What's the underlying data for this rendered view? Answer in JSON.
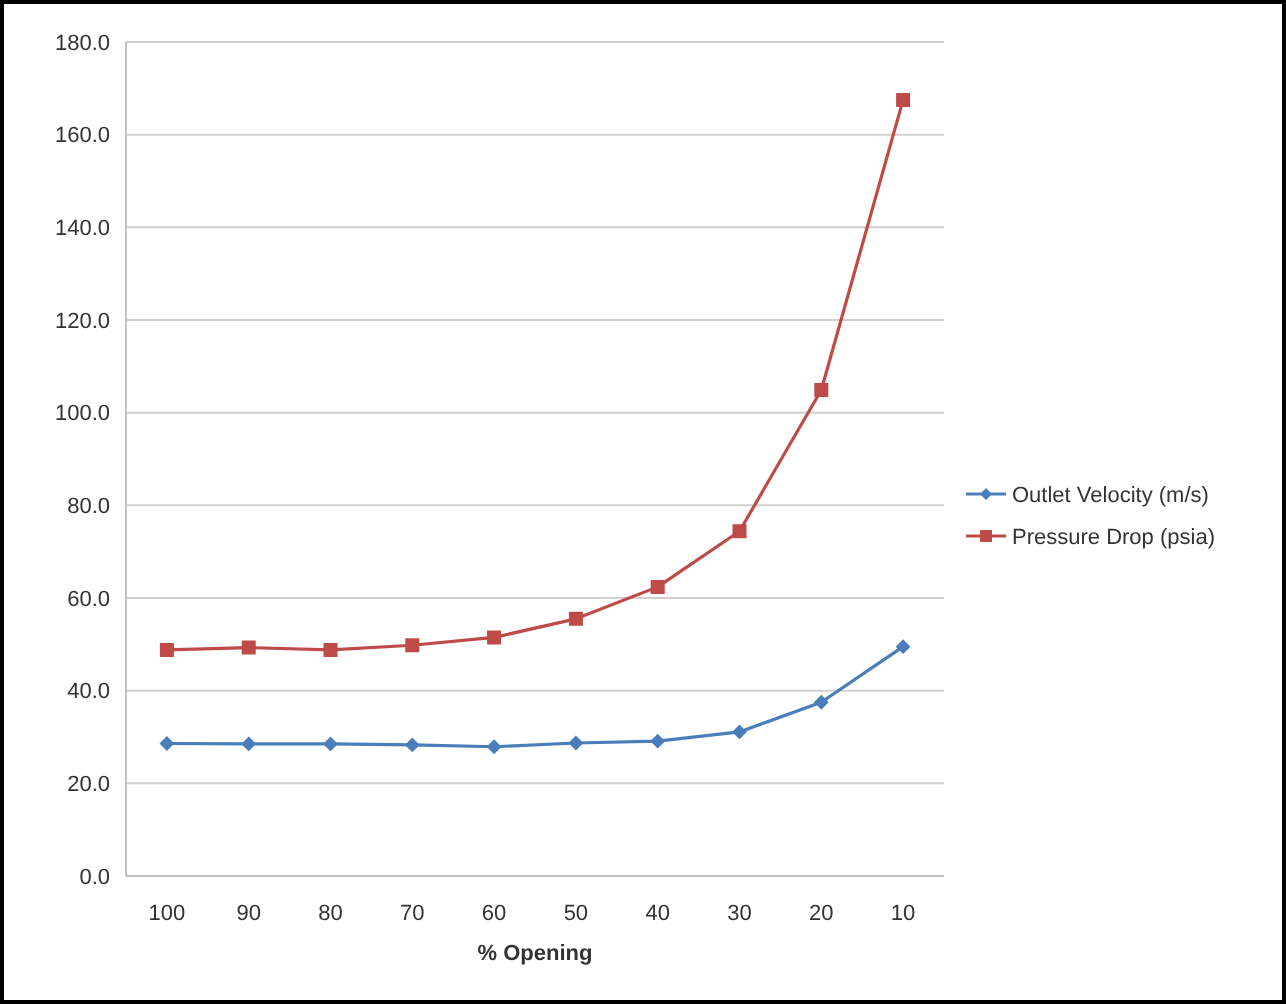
{
  "chart_data": {
    "type": "line",
    "xlabel": "% Opening",
    "categories": [
      "100",
      "90",
      "80",
      "70",
      "60",
      "50",
      "40",
      "30",
      "20",
      "10"
    ],
    "series": [
      {
        "name": "Outlet Velocity (m/s)",
        "color": "#4a7ebb",
        "marker": "diamond",
        "values": [
          28.6,
          28.5,
          28.5,
          28.3,
          27.9,
          28.7,
          29.1,
          31.1,
          37.5,
          49.5
        ]
      },
      {
        "name": "Pressure Drop (psia)",
        "color": "#be4b48",
        "marker": "square",
        "values": [
          48.8,
          49.3,
          48.8,
          49.8,
          51.5,
          55.5,
          62.4,
          74.4,
          104.9,
          167.5
        ]
      }
    ],
    "ylim": [
      0,
      180
    ],
    "yticks": [
      {
        "value": 0,
        "label": "0.0"
      },
      {
        "value": 20,
        "label": "20.0"
      },
      {
        "value": 40,
        "label": "40.0"
      },
      {
        "value": 60,
        "label": "60.0"
      },
      {
        "value": 80,
        "label": "80.0"
      },
      {
        "value": 100,
        "label": "100.0"
      },
      {
        "value": 120,
        "label": "120.0"
      },
      {
        "value": 140,
        "label": "140.0"
      },
      {
        "value": 160,
        "label": "160.0"
      },
      {
        "value": 180,
        "label": "180.0"
      }
    ],
    "grid": "y",
    "legend": "right",
    "line_style": "solid"
  }
}
